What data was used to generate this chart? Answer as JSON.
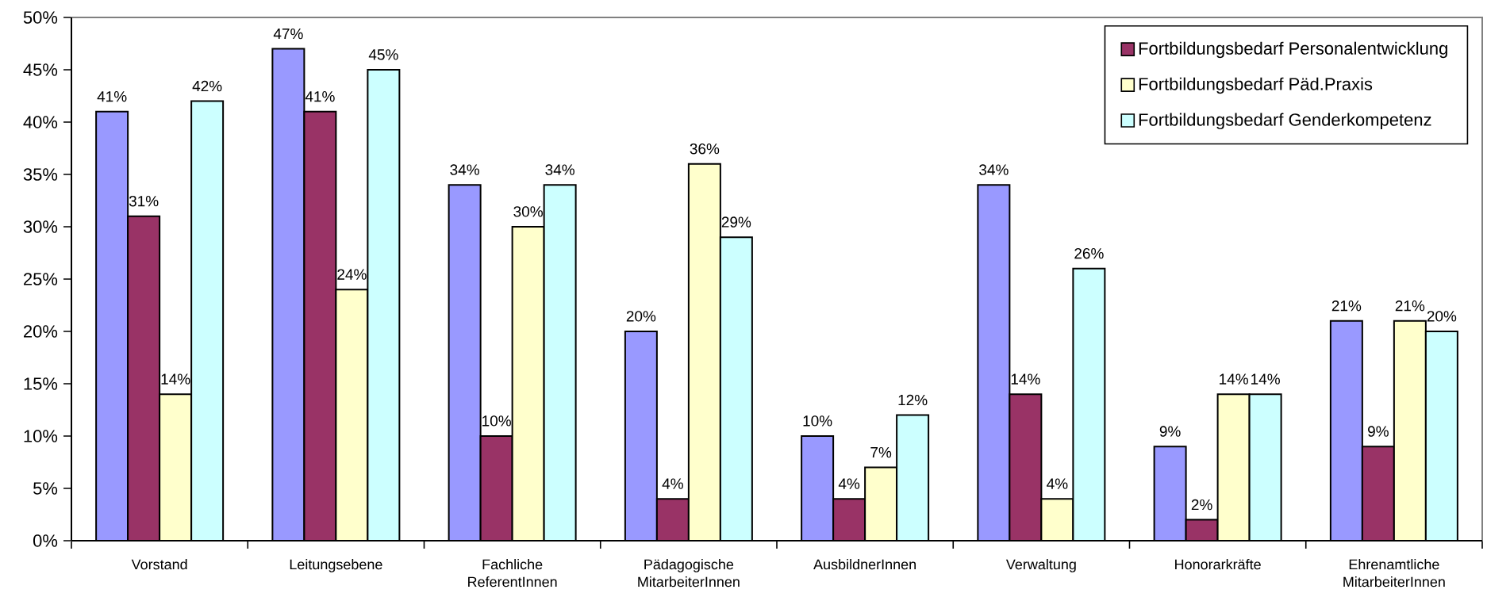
{
  "chart_data": {
    "type": "bar",
    "categories": [
      "Vorstand",
      "Leitungsebene",
      "Fachliche ReferentInnen",
      "Pädagogische MitarbeiterInnen",
      "AusbildnerInnen",
      "Verwaltung",
      "Honorarkräfte",
      "Ehrenamtliche MitarbeiterInnen"
    ],
    "series": [
      {
        "color": "#9999ff",
        "values": [
          41,
          47,
          34,
          20,
          10,
          34,
          9,
          21
        ],
        "value_labels": [
          "41%",
          "47%",
          "34%",
          "20%",
          "10%",
          "34%",
          "9%",
          "21%"
        ]
      },
      {
        "name": "Fortbildungsbedarf Personalentwicklung",
        "color": "#993366",
        "values": [
          31,
          41,
          10,
          4,
          4,
          14,
          2,
          9
        ],
        "value_labels": [
          "31%",
          "41%",
          "10%",
          "4%",
          "4%",
          "14%",
          "2%",
          "9%"
        ]
      },
      {
        "name": "Fortbildungsbedarf Päd.Praxis",
        "color": "#ffffcc",
        "values": [
          14,
          24,
          30,
          36,
          7,
          4,
          14,
          21
        ],
        "value_labels": [
          "14%",
          "24%",
          "30%",
          "36%",
          "7%",
          "4%",
          "14%",
          "21%"
        ]
      },
      {
        "name": "Fortbildungsbedarf Genderkompetenz",
        "color": "#ccffff",
        "values": [
          42,
          45,
          34,
          29,
          12,
          26,
          14,
          20
        ],
        "value_labels": [
          "42%",
          "45%",
          "34%",
          "29%",
          "12%",
          "26%",
          "14%",
          "20%"
        ]
      }
    ],
    "ylim": [
      0,
      50
    ],
    "yticks": [
      {
        "value": 0,
        "label": "0%"
      },
      {
        "value": 5,
        "label": "5%"
      },
      {
        "value": 10,
        "label": "10%"
      },
      {
        "value": 15,
        "label": "15%"
      },
      {
        "value": 20,
        "label": "20%"
      },
      {
        "value": 25,
        "label": "25%"
      },
      {
        "value": 30,
        "label": "30%"
      },
      {
        "value": 35,
        "label": "35%"
      },
      {
        "value": 40,
        "label": "40%"
      },
      {
        "value": 45,
        "label": "45%"
      },
      {
        "value": 50,
        "label": "50%"
      }
    ],
    "legend": "top right"
  }
}
